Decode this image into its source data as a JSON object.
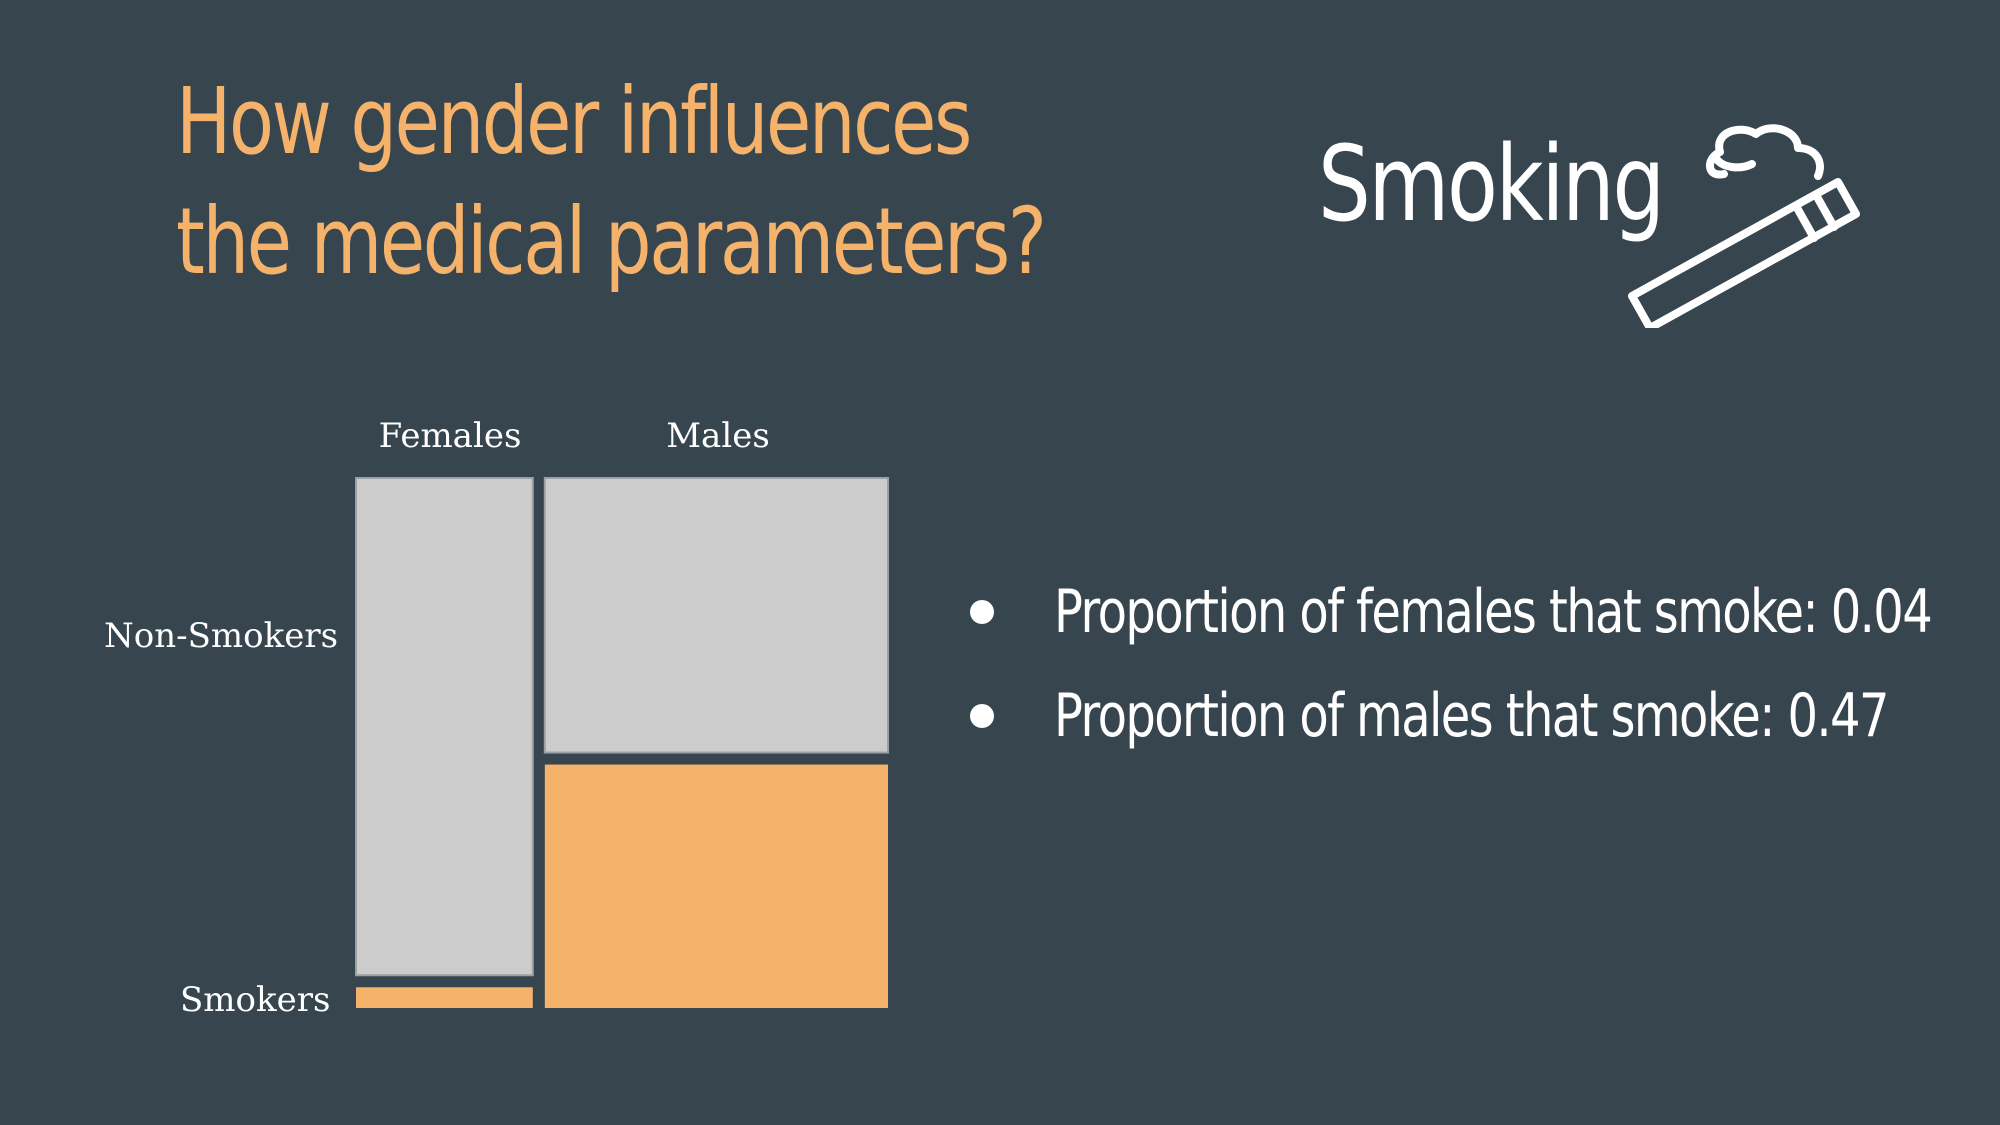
{
  "title_line1": "How gender influences",
  "title_line2": "the medical parameters?",
  "topic": "Smoking",
  "icon": "cigarette-icon",
  "colors": {
    "background": "#37454f",
    "accent": "#f5b26b",
    "neutral": "#cccccc",
    "text": "#ffffff"
  },
  "chart_data": {
    "type": "mosaic",
    "columns": [
      "Females",
      "Males"
    ],
    "column_widths": [
      0.34,
      0.66
    ],
    "rows": [
      "Non-Smokers",
      "Smokers"
    ],
    "proportions": {
      "Females": {
        "Non-Smokers": 0.96,
        "Smokers": 0.04
      },
      "Males": {
        "Non-Smokers": 0.53,
        "Smokers": 0.47
      }
    }
  },
  "bullets": [
    {
      "label": "Proportion of females that smoke:  0.04"
    },
    {
      "label": "Proportion of males that smoke:  0.47"
    }
  ]
}
